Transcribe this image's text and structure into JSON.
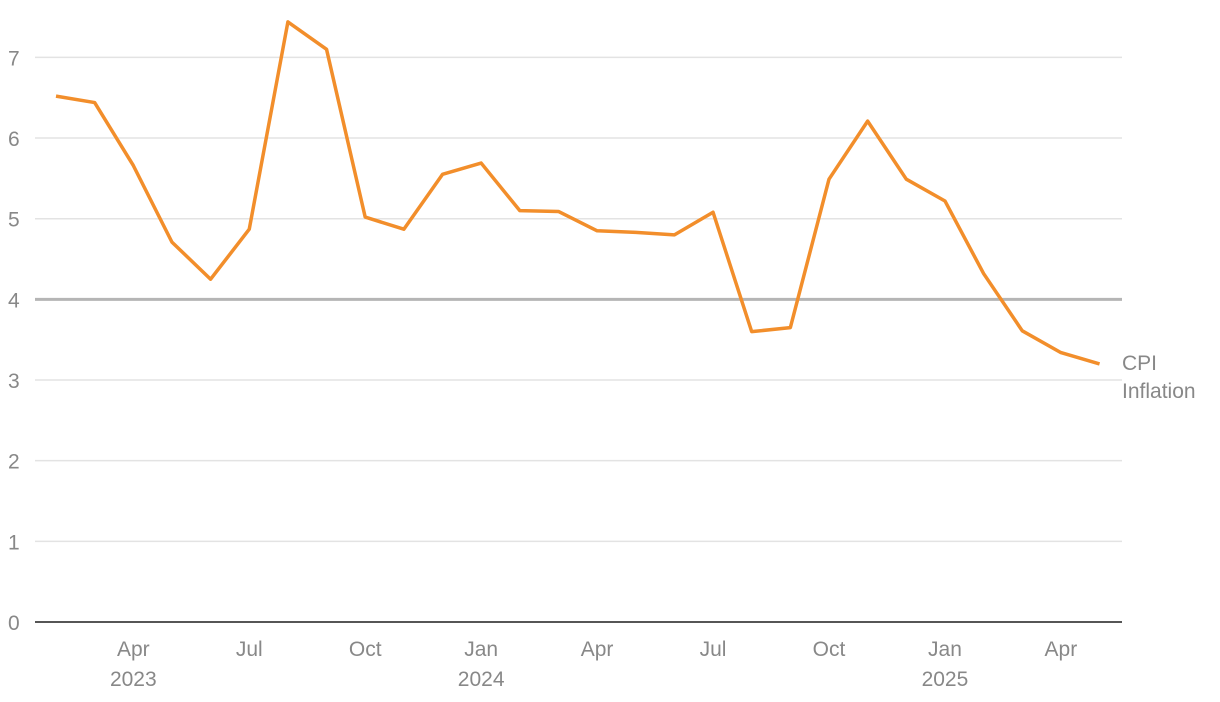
{
  "chart_data": {
    "type": "line",
    "x": [
      "2023-02",
      "2023-03",
      "2023-04",
      "2023-05",
      "2023-06",
      "2023-07",
      "2023-08",
      "2023-09",
      "2023-10",
      "2023-11",
      "2023-12",
      "2024-01",
      "2024-02",
      "2024-03",
      "2024-04",
      "2024-05",
      "2024-06",
      "2024-07",
      "2024-08",
      "2024-09",
      "2024-10",
      "2024-11",
      "2024-12",
      "2025-01",
      "2025-02",
      "2025-03",
      "2025-04",
      "2025-05"
    ],
    "series": [
      {
        "name": "CPI Inflation",
        "color": "#f28e2b",
        "values": [
          6.52,
          6.44,
          5.66,
          4.71,
          4.25,
          4.87,
          7.44,
          7.1,
          5.02,
          4.87,
          5.55,
          5.69,
          5.1,
          5.09,
          4.85,
          4.83,
          4.8,
          5.08,
          3.6,
          3.65,
          5.49,
          6.21,
          5.49,
          5.22,
          4.32,
          3.61,
          3.34,
          3.2
        ]
      }
    ],
    "ylim": [
      0,
      7.6
    ],
    "yticks": [
      0,
      1,
      2,
      3,
      4,
      5,
      6,
      7
    ],
    "grid": true,
    "reference_line": 4,
    "xticks": [
      {
        "value": "2023-04",
        "label": [
          "Apr",
          "2023"
        ]
      },
      {
        "value": "2023-07",
        "label": "Jul"
      },
      {
        "value": "2023-10",
        "label": "Oct"
      },
      {
        "value": "2024-01",
        "label": [
          "Jan",
          "2024"
        ]
      },
      {
        "value": "2024-04",
        "label": "Apr"
      },
      {
        "value": "2024-07",
        "label": "Jul"
      },
      {
        "value": "2024-10",
        "label": "Oct"
      },
      {
        "value": "2025-01",
        "label": [
          "Jan",
          "2025"
        ]
      },
      {
        "value": "2025-04",
        "label": "Apr"
      }
    ]
  }
}
